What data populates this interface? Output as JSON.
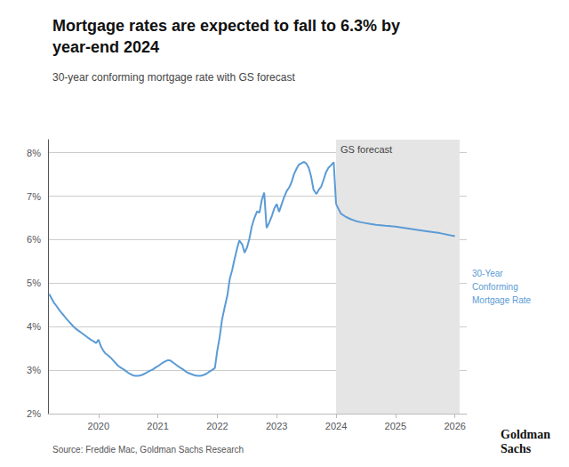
{
  "chart_data": {
    "type": "line",
    "title": "Mortgage rates are expected to fall to 6.3% by\nyear-end 2024",
    "subtitle": "30-year conforming mortgage rate with GS forecast",
    "source": "Source: Freddie Mac, Goldman Sachs Research",
    "logo": "Goldman\nSachs",
    "line_label": "30-Year\nConforming\nMortgage Rate",
    "shaded_region": {
      "x": [
        2024.0,
        2026.08
      ],
      "color": "#e5e5e5",
      "label": "GS forecast"
    },
    "xlim": [
      2019.15,
      2026.2
    ],
    "xticks": [
      2020,
      2021,
      2022,
      2023,
      2024,
      2025,
      2026
    ],
    "ylim": [
      2.0,
      8.3
    ],
    "yticks": [
      {
        "value": 2,
        "label": "2%"
      },
      {
        "value": 3,
        "label": "3%"
      },
      {
        "value": 4,
        "label": "4%"
      },
      {
        "value": 5,
        "label": "5%"
      },
      {
        "value": 6,
        "label": "6%"
      },
      {
        "value": 7,
        "label": "7%"
      },
      {
        "value": 8,
        "label": "8%"
      }
    ],
    "grid": true,
    "series": [
      {
        "color": "#5b9bd5",
        "x": [
          2019.17,
          2019.21,
          2019.25,
          2019.29,
          2019.33,
          2019.37,
          2019.42,
          2019.46,
          2019.5,
          2019.54,
          2019.58,
          2019.62,
          2019.67,
          2019.71,
          2019.75,
          2019.79,
          2019.83,
          2019.87,
          2019.92,
          2019.96,
          2020.0,
          2020.04,
          2020.08,
          2020.12,
          2020.17,
          2020.21,
          2020.25,
          2020.29,
          2020.33,
          2020.37,
          2020.42,
          2020.46,
          2020.5,
          2020.54,
          2020.58,
          2020.62,
          2020.67,
          2020.71,
          2020.75,
          2020.79,
          2020.83,
          2020.87,
          2020.92,
          2020.96,
          2021.0,
          2021.04,
          2021.08,
          2021.12,
          2021.17,
          2021.21,
          2021.25,
          2021.29,
          2021.33,
          2021.37,
          2021.42,
          2021.46,
          2021.5,
          2021.54,
          2021.58,
          2021.62,
          2021.67,
          2021.71,
          2021.75,
          2021.79,
          2021.83,
          2021.87,
          2021.92,
          2021.96,
          2022.0,
          2022.04,
          2022.08,
          2022.12,
          2022.17,
          2022.21,
          2022.25,
          2022.29,
          2022.33,
          2022.37,
          2022.42,
          2022.46,
          2022.5,
          2022.54,
          2022.58,
          2022.62,
          2022.67,
          2022.71,
          2022.75,
          2022.79,
          2022.83,
          2022.87,
          2022.92,
          2022.96,
          2023.0,
          2023.04,
          2023.08,
          2023.12,
          2023.17,
          2023.21,
          2023.25,
          2023.29,
          2023.33,
          2023.37,
          2023.42,
          2023.46,
          2023.5,
          2023.54,
          2023.58,
          2023.62,
          2023.67,
          2023.71,
          2023.75,
          2023.79,
          2023.83,
          2023.87,
          2023.92,
          2023.96,
          2024.0
        ],
        "values": [
          4.75,
          4.65,
          4.55,
          4.48,
          4.4,
          4.33,
          4.25,
          4.18,
          4.12,
          4.06,
          4.0,
          3.95,
          3.9,
          3.86,
          3.82,
          3.78,
          3.74,
          3.7,
          3.66,
          3.62,
          3.7,
          3.55,
          3.45,
          3.38,
          3.33,
          3.28,
          3.22,
          3.16,
          3.1,
          3.06,
          3.02,
          2.98,
          2.94,
          2.91,
          2.88,
          2.87,
          2.87,
          2.88,
          2.9,
          2.93,
          2.96,
          2.99,
          3.02,
          3.06,
          3.09,
          3.13,
          3.17,
          3.2,
          3.23,
          3.22,
          3.18,
          3.14,
          3.1,
          3.06,
          3.02,
          2.98,
          2.94,
          2.92,
          2.9,
          2.88,
          2.87,
          2.87,
          2.88,
          2.9,
          2.93,
          2.97,
          3.01,
          3.05,
          3.45,
          3.76,
          4.16,
          4.42,
          4.72,
          5.1,
          5.3,
          5.55,
          5.78,
          5.98,
          5.89,
          5.7,
          5.82,
          6.02,
          6.3,
          6.48,
          6.65,
          6.62,
          6.92,
          7.08,
          6.27,
          6.38,
          6.55,
          6.72,
          6.82,
          6.64,
          6.8,
          6.96,
          7.12,
          7.2,
          7.32,
          7.5,
          7.62,
          7.72,
          7.76,
          7.79,
          7.75,
          7.65,
          7.45,
          7.15,
          7.05,
          7.15,
          7.22,
          7.38,
          7.55,
          7.65,
          7.72,
          7.78,
          6.82
        ]
      },
      {
        "color": "#5b9bd5",
        "x": [
          2024.0,
          2024.08,
          2024.17,
          2024.25,
          2024.33,
          2024.42,
          2024.5,
          2024.58,
          2024.67,
          2024.75,
          2024.83,
          2024.92,
          2025.0,
          2025.25,
          2025.5,
          2025.75,
          2026.0
        ],
        "values": [
          6.82,
          6.6,
          6.52,
          6.47,
          6.43,
          6.4,
          6.38,
          6.36,
          6.34,
          6.33,
          6.32,
          6.31,
          6.3,
          6.25,
          6.2,
          6.15,
          6.08
        ]
      }
    ]
  }
}
